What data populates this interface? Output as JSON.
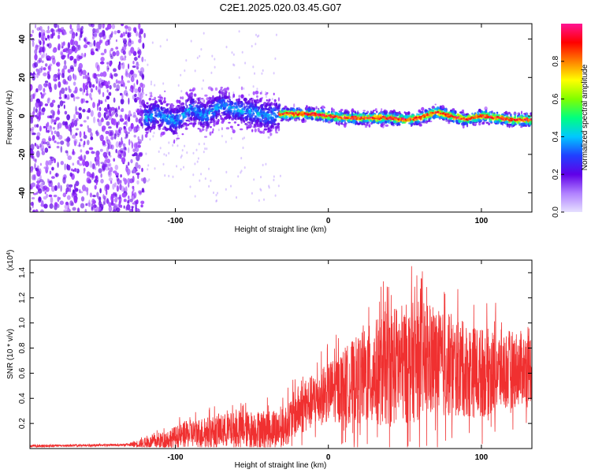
{
  "title": "C2E1.2025.020.03.45.G07",
  "colors": {
    "snr_line": "#f03030",
    "colormap": [
      "#d0d0ff",
      "#9b30ff",
      "#5a00e0",
      "#2040ff",
      "#00c8ff",
      "#00ff80",
      "#a0ff00",
      "#ffff00",
      "#ff8000",
      "#ff0000",
      "#ff1493"
    ]
  },
  "chart_data": [
    {
      "type": "heatmap",
      "title": "",
      "xlabel": "Height of straight line (km)",
      "ylabel": "Frequency (Hz)",
      "xlim": [
        -195,
        133
      ],
      "ylim": [
        -50,
        48
      ],
      "x_ticks": [
        -100,
        0,
        100
      ],
      "y_ticks": [
        -40,
        -20,
        0,
        20,
        40
      ],
      "colorbar": {
        "label": "Normalized spectral amplitude",
        "range": [
          0,
          1
        ],
        "ticks": [
          "0.0",
          "0.2",
          "0.4",
          "0.6",
          "0.8"
        ],
        "tick_values": [
          0,
          0.2,
          0.4,
          0.6,
          0.8
        ]
      },
      "regions": [
        {
          "x": [
            -195,
            -120
          ],
          "description_level": 0.1,
          "freq_spread": [
            -50,
            48
          ]
        },
        {
          "x": [
            -120,
            -32
          ],
          "center_freq": 0,
          "freq_spread": [
            -15,
            12
          ],
          "peak_amplitude": 0.35
        },
        {
          "x": [
            -32,
            133
          ],
          "center_freq": 0,
          "freq_spread": [
            -5,
            5
          ],
          "peak_amplitude": 0.9
        }
      ],
      "ridge": [
        [
          -125,
          -2
        ],
        [
          -110,
          1
        ],
        [
          -100,
          -3
        ],
        [
          -90,
          4
        ],
        [
          -80,
          0
        ],
        [
          -70,
          6
        ],
        [
          -60,
          3
        ],
        [
          -50,
          2
        ],
        [
          -40,
          0
        ],
        [
          -32,
          1
        ],
        [
          -20,
          1
        ],
        [
          -10,
          1
        ],
        [
          0,
          0
        ],
        [
          10,
          -1
        ],
        [
          20,
          -1
        ],
        [
          30,
          -1
        ],
        [
          40,
          -1
        ],
        [
          50,
          -2
        ],
        [
          60,
          -1
        ],
        [
          70,
          2
        ],
        [
          80,
          0
        ],
        [
          90,
          -2
        ],
        [
          100,
          0
        ],
        [
          110,
          -1
        ],
        [
          120,
          -2
        ],
        [
          133,
          -2
        ]
      ]
    },
    {
      "type": "line",
      "title": "",
      "xlabel": "Height of straight line (km)",
      "ylabel": "SNR (10 * v/v)",
      "y_multiplier": "(x10",
      "y_multiplier_exp": "4",
      "y_multiplier_close": ")",
      "xlim": [
        -195,
        133
      ],
      "ylim": [
        0,
        1.5
      ],
      "x_ticks": [
        -100,
        0,
        100
      ],
      "y_ticks": [
        0.2,
        0.4,
        0.6,
        0.8,
        1.0,
        1.2,
        1.4
      ],
      "y_tick_labels": [
        "0.2",
        "0.4",
        "0.6",
        "0.8",
        "1.0",
        "1.2",
        "1.4"
      ],
      "envelope": [
        {
          "x": -195,
          "base": 0.02,
          "amp": 0.02
        },
        {
          "x": -130,
          "base": 0.03,
          "amp": 0.02
        },
        {
          "x": -110,
          "base": 0.06,
          "amp": 0.08
        },
        {
          "x": -90,
          "base": 0.12,
          "amp": 0.14
        },
        {
          "x": -60,
          "base": 0.15,
          "amp": 0.18
        },
        {
          "x": -30,
          "base": 0.16,
          "amp": 0.2
        },
        {
          "x": -20,
          "base": 0.3,
          "amp": 0.25
        },
        {
          "x": 0,
          "base": 0.45,
          "amp": 0.3
        },
        {
          "x": 20,
          "base": 0.55,
          "amp": 0.45
        },
        {
          "x": 40,
          "base": 0.65,
          "amp": 0.6
        },
        {
          "x": 60,
          "base": 0.7,
          "amp": 0.6
        },
        {
          "x": 80,
          "base": 0.65,
          "amp": 0.5
        },
        {
          "x": 100,
          "base": 0.6,
          "amp": 0.45
        },
        {
          "x": 133,
          "base": 0.65,
          "amp": 0.35
        }
      ]
    }
  ]
}
